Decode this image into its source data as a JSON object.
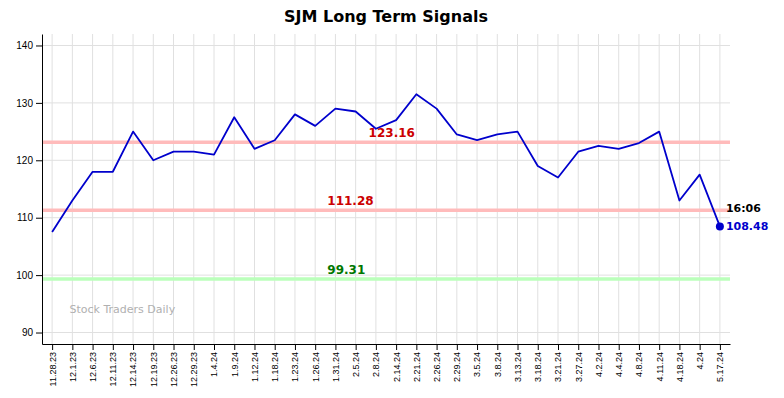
{
  "chart_data": {
    "type": "line",
    "title": "SJM Long Term Signals",
    "categories": [
      "11.28.23",
      "12.1.23",
      "12.6.23",
      "12.11.23",
      "12.14.23",
      "12.19.23",
      "12.26.23",
      "12.29.23",
      "1.4.24",
      "1.9.24",
      "1.12.24",
      "1.18.24",
      "1.23.24",
      "1.26.24",
      "1.31.24",
      "2.5.24",
      "2.8.24",
      "2.14.24",
      "2.21.24",
      "2.26.24",
      "2.29.24",
      "3.5.24",
      "3.8.24",
      "3.13.24",
      "3.18.24",
      "3.21.24",
      "3.27.24",
      "4.2.24",
      "4.4.24",
      "4.8.24",
      "4.11.24",
      "4.18.24",
      "4.24",
      "5.17.24"
    ],
    "values": [
      107.5,
      113.0,
      118.0,
      118.0,
      125.0,
      120.0,
      121.5,
      121.5,
      121.0,
      127.5,
      122.0,
      123.5,
      128.0,
      126.0,
      129.0,
      128.5,
      125.5,
      127.0,
      131.5,
      129.0,
      124.5,
      123.5,
      124.5,
      125.0,
      119.0,
      117.0,
      121.5,
      122.5,
      122.0,
      123.0,
      125.0,
      113.0,
      117.5,
      108.48
    ],
    "color": "#0000cc",
    "ylim": [
      88,
      142
    ],
    "yticks": [
      90,
      100,
      110,
      120,
      130,
      140
    ],
    "grid": true,
    "hlines": [
      {
        "value": 123.16,
        "label": "123.16",
        "color": "#ffbbbb",
        "label_color": "#cc0000"
      },
      {
        "value": 111.28,
        "label": "111.28",
        "color": "#ffbbbb",
        "label_color": "#cc0000"
      },
      {
        "value": 99.31,
        "label": "99.31",
        "color": "#bbffbb",
        "label_color": "#007700"
      }
    ],
    "last_point": {
      "time_label": "16:06",
      "value_label": "108.48",
      "color": "#0000cc"
    },
    "watermark": "Stock Traders Daily"
  }
}
